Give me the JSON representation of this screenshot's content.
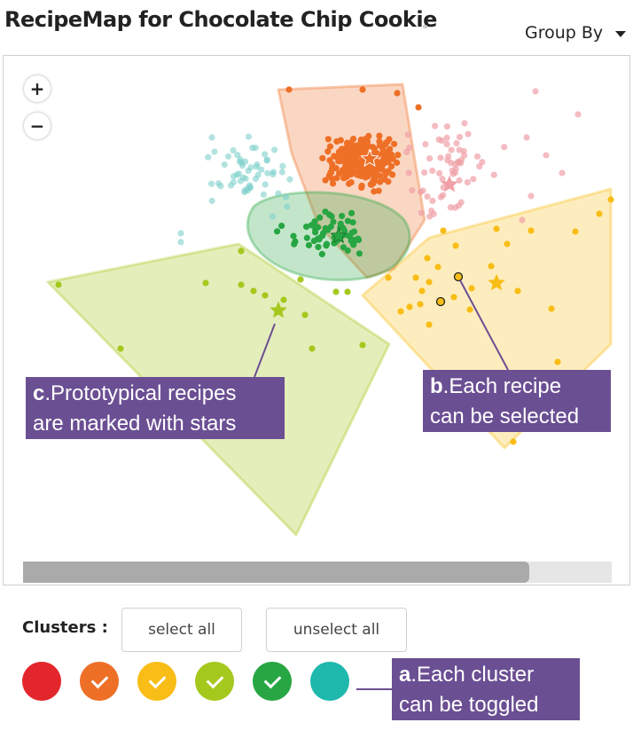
{
  "header": {
    "title": "RecipeMap for Chocolate Chip Cookie",
    "title_link_glyph": "⚭",
    "group_by_label": "Group By"
  },
  "map": {
    "zoom_in_label": "+",
    "zoom_out_label": "−",
    "scroll_fraction": 0.86
  },
  "annotations": {
    "a": {
      "letter": "a",
      "line1": ".Each cluster",
      "line2": "can be toggled"
    },
    "b": {
      "letter": "b",
      "line1": ".Each recipe",
      "line2": "can be selected"
    },
    "c": {
      "letter": "c",
      "line1": ".Prototypical recipes",
      "line2": "are marked with stars"
    }
  },
  "clusters_section": {
    "label": "Clusters :",
    "select_all_label": "select all",
    "unselect_all_label": "unselect all"
  },
  "clusters": [
    {
      "name": "red",
      "color": "#e3262b",
      "checked": false
    },
    {
      "name": "orange",
      "color": "#ee6f26",
      "checked": true
    },
    {
      "name": "yellow",
      "color": "#f8bd16",
      "checked": true
    },
    {
      "name": "lime",
      "color": "#a5c81d",
      "checked": true
    },
    {
      "name": "green",
      "color": "#27a643",
      "checked": true
    },
    {
      "name": "teal",
      "color": "#1eb8ad",
      "checked": false
    }
  ],
  "colors": {
    "orange": "#ee6f26",
    "yellow": "#f8bd16",
    "lime": "#a5c81d",
    "green": "#27a643",
    "teal": "#7fd0cb",
    "pink": "#f0a0a6",
    "annotation_bg": "#6b4f93"
  }
}
